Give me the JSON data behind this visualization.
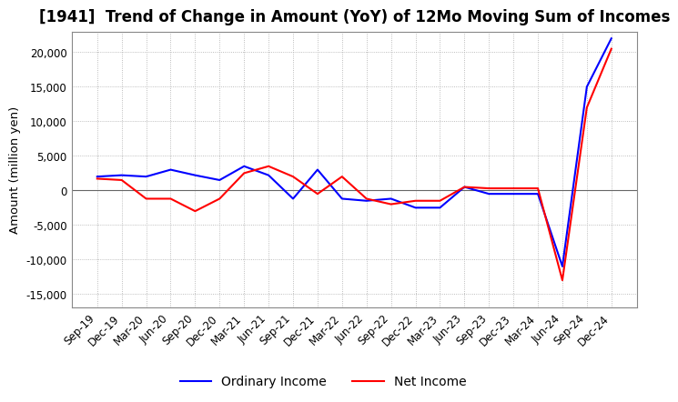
{
  "title": "[1941]  Trend of Change in Amount (YoY) of 12Mo Moving Sum of Incomes",
  "ylabel": "Amount (million yen)",
  "ylim": [
    -17000,
    23000
  ],
  "yticks": [
    -15000,
    -10000,
    -5000,
    0,
    5000,
    10000,
    15000,
    20000
  ],
  "x_labels": [
    "Sep-19",
    "Dec-19",
    "Mar-20",
    "Jun-20",
    "Sep-20",
    "Dec-20",
    "Mar-21",
    "Jun-21",
    "Sep-21",
    "Dec-21",
    "Mar-22",
    "Jun-22",
    "Sep-22",
    "Dec-22",
    "Mar-23",
    "Jun-23",
    "Sep-23",
    "Dec-23",
    "Mar-24",
    "Jun-24",
    "Sep-24",
    "Dec-24"
  ],
  "ordinary_income": [
    2000,
    2200,
    2000,
    3000,
    2200,
    1500,
    3500,
    2200,
    -1200,
    3000,
    -1200,
    -1500,
    -1200,
    -2500,
    -2500,
    500,
    -500,
    -500,
    -500,
    -11000,
    15000,
    22000
  ],
  "net_income": [
    1700,
    1500,
    -1200,
    -1200,
    -3000,
    -1200,
    2500,
    3500,
    2000,
    -500,
    2000,
    -1200,
    -2000,
    -1500,
    -1500,
    500,
    300,
    300,
    300,
    -13000,
    12000,
    20500
  ],
  "ordinary_color": "#0000ff",
  "net_color": "#ff0000",
  "grid_color": "#aaaaaa",
  "zero_line_color": "#666666",
  "background_color": "#ffffff",
  "title_fontsize": 12,
  "legend_fontsize": 10,
  "axis_fontsize": 8.5
}
